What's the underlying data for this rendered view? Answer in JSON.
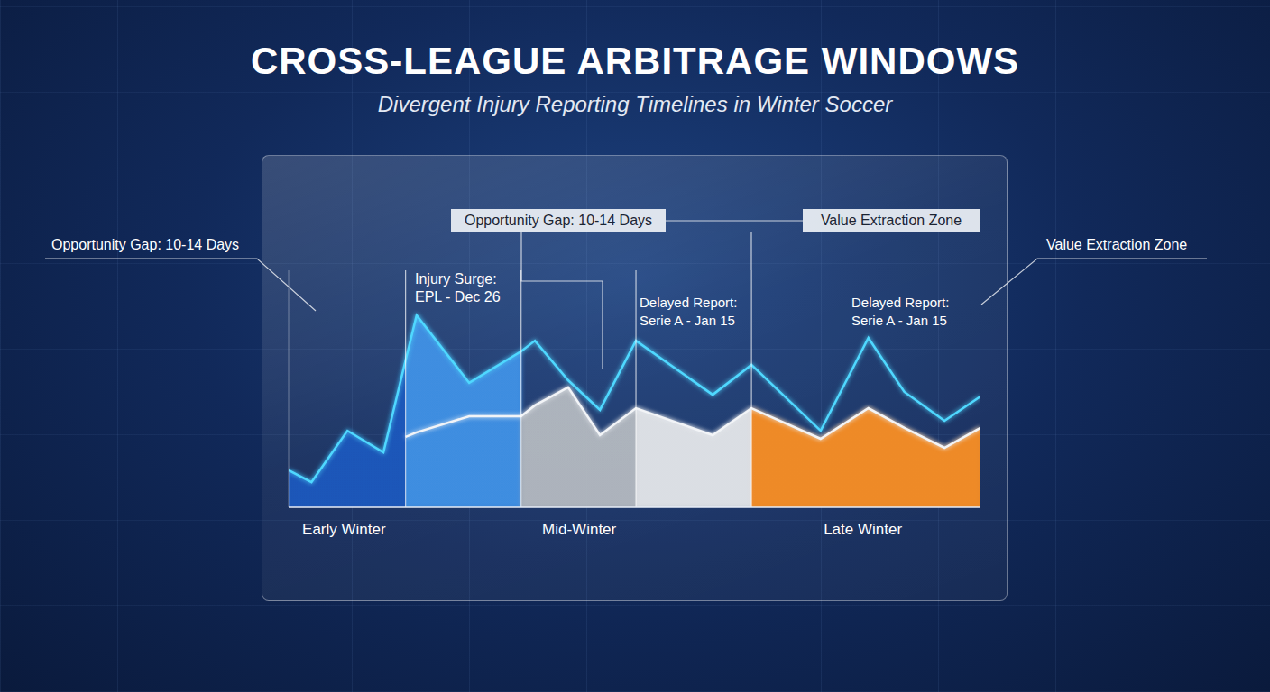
{
  "chart_data": {
    "type": "area",
    "title": "CROSS-LEAGUE ARBITRAGE WINDOWS",
    "subtitle": "Divergent Injury Reporting Timelines in Winter Soccer",
    "x": [
      0,
      3.3,
      8.5,
      13.7,
      16.9,
      18.5,
      26.1,
      33.6,
      35.6,
      40.4,
      45.0,
      50.2,
      61.3,
      66.9,
      76.9,
      83.8,
      89.0,
      94.8,
      100
    ],
    "series": [
      {
        "color": "#4fd8ff",
        "values": [
          15.6,
          10.6,
          32.3,
          23.2,
          62.0,
          81.0,
          52.5,
          65.8,
          70.3,
          53.6,
          41.1,
          70.3,
          47.5,
          60.1,
          32.3,
          71.5,
          48.7,
          36.5,
          46.8
        ]
      },
      {
        "color": "#f2f4f7",
        "values": [
          null,
          null,
          null,
          null,
          29.7,
          31.6,
          38.4,
          38.4,
          43.0,
          50.6,
          30.4,
          41.8,
          30.4,
          41.8,
          28.9,
          41.8,
          33.5,
          25.1,
          33.5
        ]
      }
    ],
    "xlim": [
      0,
      100
    ],
    "xticks": [
      {
        "value": 8,
        "label": "Early Winter"
      },
      {
        "value": 42,
        "label": "Mid-Winter"
      },
      {
        "value": 83,
        "label": "Late Winter"
      }
    ],
    "ylim": [
      0,
      100
    ],
    "yticks": [],
    "tick_labels": "x",
    "grid": false,
    "annotations": [
      "Opportunity Gap: 10-14 Days",
      "Injury Surge: EPL - Dec 26",
      "Opportunity Gap: 10-14 Days",
      "Value Extraction Zone",
      "Delayed Report: Serie A - Jan 15",
      "Delayed Report: Serie A - Jan 15",
      "Value Extraction Zone"
    ]
  }
}
